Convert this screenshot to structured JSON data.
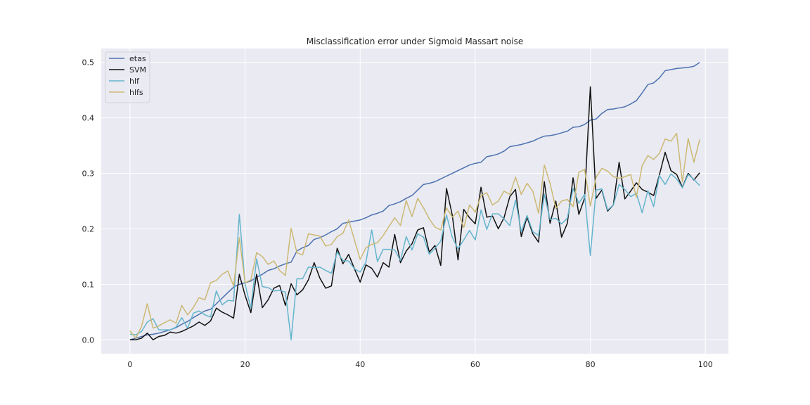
{
  "chart_data": {
    "type": "line",
    "title": "Misclassification error under Sigmoid Massart noise",
    "xlabel": "",
    "ylabel": "",
    "xlim": [
      -5,
      104
    ],
    "ylim": [
      -0.025,
      0.525
    ],
    "x_ticks": [
      0,
      20,
      40,
      60,
      80,
      100
    ],
    "y_ticks": [
      0.0,
      0.1,
      0.2,
      0.3,
      0.4,
      0.5
    ],
    "x_tick_labels": [
      "0",
      "20",
      "40",
      "60",
      "80",
      "100"
    ],
    "y_tick_labels": [
      "0.0",
      "0.1",
      "0.2",
      "0.3",
      "0.4",
      "0.5"
    ],
    "grid": true,
    "legend_position": "top-left",
    "series": [
      {
        "name": "etas",
        "color": "#4c72b0",
        "values": [
          0.0,
          0.003,
          0.006,
          0.009,
          0.01,
          0.012,
          0.015,
          0.018,
          0.022,
          0.028,
          0.033,
          0.04,
          0.046,
          0.052,
          0.055,
          0.065,
          0.075,
          0.085,
          0.095,
          0.1,
          0.103,
          0.106,
          0.113,
          0.118,
          0.125,
          0.128,
          0.133,
          0.137,
          0.14,
          0.16,
          0.166,
          0.17,
          0.181,
          0.184,
          0.189,
          0.195,
          0.2,
          0.21,
          0.212,
          0.214,
          0.216,
          0.22,
          0.225,
          0.228,
          0.232,
          0.242,
          0.245,
          0.249,
          0.255,
          0.26,
          0.27,
          0.28,
          0.282,
          0.285,
          0.29,
          0.295,
          0.3,
          0.305,
          0.31,
          0.315,
          0.318,
          0.32,
          0.33,
          0.332,
          0.335,
          0.34,
          0.348,
          0.35,
          0.352,
          0.355,
          0.358,
          0.363,
          0.367,
          0.368,
          0.37,
          0.373,
          0.376,
          0.383,
          0.384,
          0.388,
          0.396,
          0.398,
          0.408,
          0.415,
          0.416,
          0.418,
          0.42,
          0.425,
          0.431,
          0.445,
          0.46,
          0.463,
          0.472,
          0.485,
          0.487,
          0.489,
          0.49,
          0.491,
          0.493,
          0.5
        ]
      },
      {
        "name": "SVM",
        "color": "#111111",
        "values": [
          0.0,
          0.0,
          0.003,
          0.012,
          0.0,
          0.006,
          0.008,
          0.014,
          0.012,
          0.015,
          0.02,
          0.025,
          0.032,
          0.026,
          0.034,
          0.057,
          0.05,
          0.045,
          0.039,
          0.118,
          0.08,
          0.049,
          0.118,
          0.058,
          0.072,
          0.093,
          0.098,
          0.062,
          0.101,
          0.081,
          0.09,
          0.108,
          0.139,
          0.111,
          0.093,
          0.097,
          0.165,
          0.137,
          0.154,
          0.128,
          0.104,
          0.135,
          0.129,
          0.113,
          0.139,
          0.131,
          0.19,
          0.139,
          0.16,
          0.173,
          0.198,
          0.202,
          0.158,
          0.17,
          0.134,
          0.273,
          0.225,
          0.144,
          0.235,
          0.22,
          0.209,
          0.275,
          0.221,
          0.223,
          0.2,
          0.22,
          0.258,
          0.271,
          0.186,
          0.221,
          0.191,
          0.176,
          0.285,
          0.21,
          0.25,
          0.185,
          0.21,
          0.292,
          0.226,
          0.255,
          0.456,
          0.255,
          0.27,
          0.232,
          0.243,
          0.32,
          0.254,
          0.268,
          0.283,
          0.271,
          0.266,
          0.26,
          0.297,
          0.338,
          0.305,
          0.298,
          0.275,
          0.3,
          0.288,
          0.301
        ]
      },
      {
        "name": "hlf",
        "color": "#64b5cd",
        "values": [
          0.01,
          0.009,
          0.015,
          0.032,
          0.038,
          0.018,
          0.018,
          0.018,
          0.023,
          0.04,
          0.021,
          0.048,
          0.052,
          0.045,
          0.041,
          0.088,
          0.063,
          0.071,
          0.07,
          0.226,
          0.1,
          0.057,
          0.146,
          0.096,
          0.094,
          0.088,
          0.089,
          0.086,
          0.0,
          0.11,
          0.11,
          0.131,
          0.13,
          0.131,
          0.125,
          0.12,
          0.158,
          0.143,
          0.142,
          0.128,
          0.122,
          0.14,
          0.198,
          0.141,
          0.163,
          0.163,
          0.162,
          0.143,
          0.186,
          0.162,
          0.191,
          0.185,
          0.154,
          0.165,
          0.178,
          0.225,
          0.185,
          0.164,
          0.18,
          0.197,
          0.18,
          0.234,
          0.199,
          0.227,
          0.227,
          0.218,
          0.206,
          0.252,
          0.195,
          0.224,
          0.195,
          0.188,
          0.262,
          0.217,
          0.219,
          0.209,
          0.219,
          0.273,
          0.246,
          0.262,
          0.152,
          0.27,
          0.272,
          0.234,
          0.243,
          0.28,
          0.271,
          0.258,
          0.264,
          0.229,
          0.269,
          0.24,
          0.296,
          0.28,
          0.299,
          0.29,
          0.274,
          0.298,
          0.289,
          0.278
        ]
      },
      {
        "name": "hlfs",
        "color": "#ccb974",
        "values": [
          0.016,
          0.003,
          0.024,
          0.065,
          0.021,
          0.025,
          0.031,
          0.036,
          0.03,
          0.062,
          0.045,
          0.058,
          0.076,
          0.072,
          0.103,
          0.107,
          0.118,
          0.124,
          0.097,
          0.184,
          0.103,
          0.108,
          0.157,
          0.15,
          0.136,
          0.142,
          0.125,
          0.116,
          0.201,
          0.157,
          0.153,
          0.191,
          0.189,
          0.187,
          0.169,
          0.172,
          0.186,
          0.192,
          0.216,
          0.18,
          0.145,
          0.166,
          0.172,
          0.175,
          0.188,
          0.204,
          0.22,
          0.206,
          0.251,
          0.222,
          0.255,
          0.238,
          0.218,
          0.203,
          0.198,
          0.238,
          0.221,
          0.232,
          0.202,
          0.243,
          0.23,
          0.26,
          0.265,
          0.243,
          0.25,
          0.268,
          0.262,
          0.293,
          0.262,
          0.282,
          0.268,
          0.228,
          0.315,
          0.282,
          0.237,
          0.25,
          0.253,
          0.24,
          0.302,
          0.307,
          0.241,
          0.293,
          0.309,
          0.304,
          0.294,
          0.291,
          0.294,
          0.298,
          0.257,
          0.314,
          0.332,
          0.325,
          0.336,
          0.362,
          0.358,
          0.372,
          0.285,
          0.363,
          0.32,
          0.361
        ]
      }
    ]
  }
}
